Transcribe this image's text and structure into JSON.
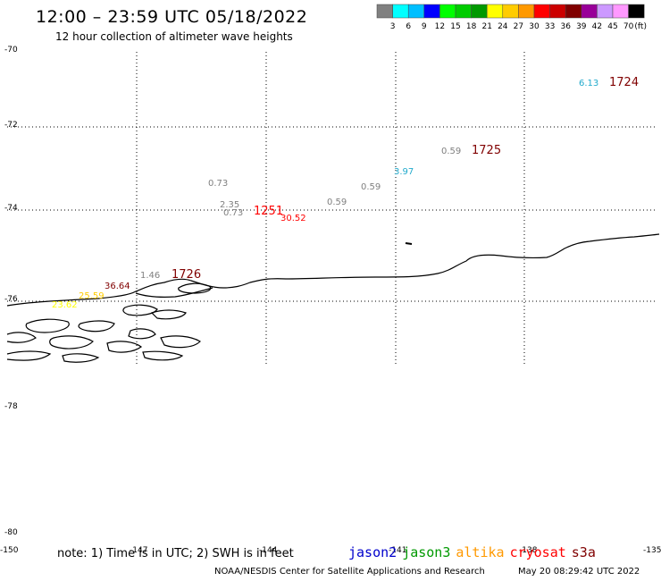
{
  "header": {
    "title": "12:00 – 23:59 UTC 05/18/2022",
    "subtitle": "12 hour collection of altimeter wave heights"
  },
  "legend": {
    "colors": [
      "#808080",
      "#00ffff",
      "#00bfff",
      "#0000ff",
      "#00ff00",
      "#00cc00",
      "#009900",
      "#ffff00",
      "#ffcc00",
      "#ff9900",
      "#ff0000",
      "#cc0000",
      "#800000",
      "#990099",
      "#cc99ff",
      "#ff99ff",
      "#000000"
    ],
    "ticks": [
      "3",
      "6",
      "9",
      "12",
      "15",
      "18",
      "21",
      "24",
      "27",
      "30",
      "33",
      "36",
      "39",
      "42",
      "45",
      "70"
    ],
    "unit": "(ft)"
  },
  "axes": {
    "lat_labels": [
      "-70",
      "-72",
      "-74",
      "-76",
      "-78",
      "-80"
    ],
    "lon_labels": [
      "-150",
      "-147",
      "-144",
      "-141",
      "-138",
      "-135"
    ]
  },
  "observations": [
    {
      "text": "6.13",
      "color": "#22aacc"
    },
    {
      "text": "1724",
      "color": "#800000"
    },
    {
      "text": "0.59",
      "color": "#808080"
    },
    {
      "text": "1725",
      "color": "#800000"
    },
    {
      "text": "3.97",
      "color": "#22aacc"
    },
    {
      "text": "0.73",
      "color": "#808080"
    },
    {
      "text": "0.59",
      "color": "#808080"
    },
    {
      "text": "2.35",
      "color": "#808080"
    },
    {
      "text": "0.73",
      "color": "#808080"
    },
    {
      "text": "1251",
      "color": "#ff0000"
    },
    {
      "text": "30.52",
      "color": "#ff0000"
    },
    {
      "text": "0.59",
      "color": "#808080"
    },
    {
      "text": "1.46",
      "color": "#808080"
    },
    {
      "text": "1726",
      "color": "#800000"
    },
    {
      "text": "36.64",
      "color": "#800000"
    },
    {
      "text": "25.59",
      "color": "#ffcc00"
    },
    {
      "text": "23.62",
      "color": "#ffff00"
    }
  ],
  "footer": {
    "note": "note: 1) Time is in UTC; 2) SWH is in feet",
    "satellites": [
      {
        "name": "jason2",
        "color": "#0000cc"
      },
      {
        "name": "jason3",
        "color": "#009900"
      },
      {
        "name": "altika",
        "color": "#ff9900"
      },
      {
        "name": "cryosat",
        "color": "#ff0000"
      },
      {
        "name": "s3a",
        "color": "#800000"
      }
    ],
    "credit": "NOAA/NESDIS Center for Satellite Applications and Research",
    "timestamp": "May 20 08:29:42 UTC 2022"
  }
}
